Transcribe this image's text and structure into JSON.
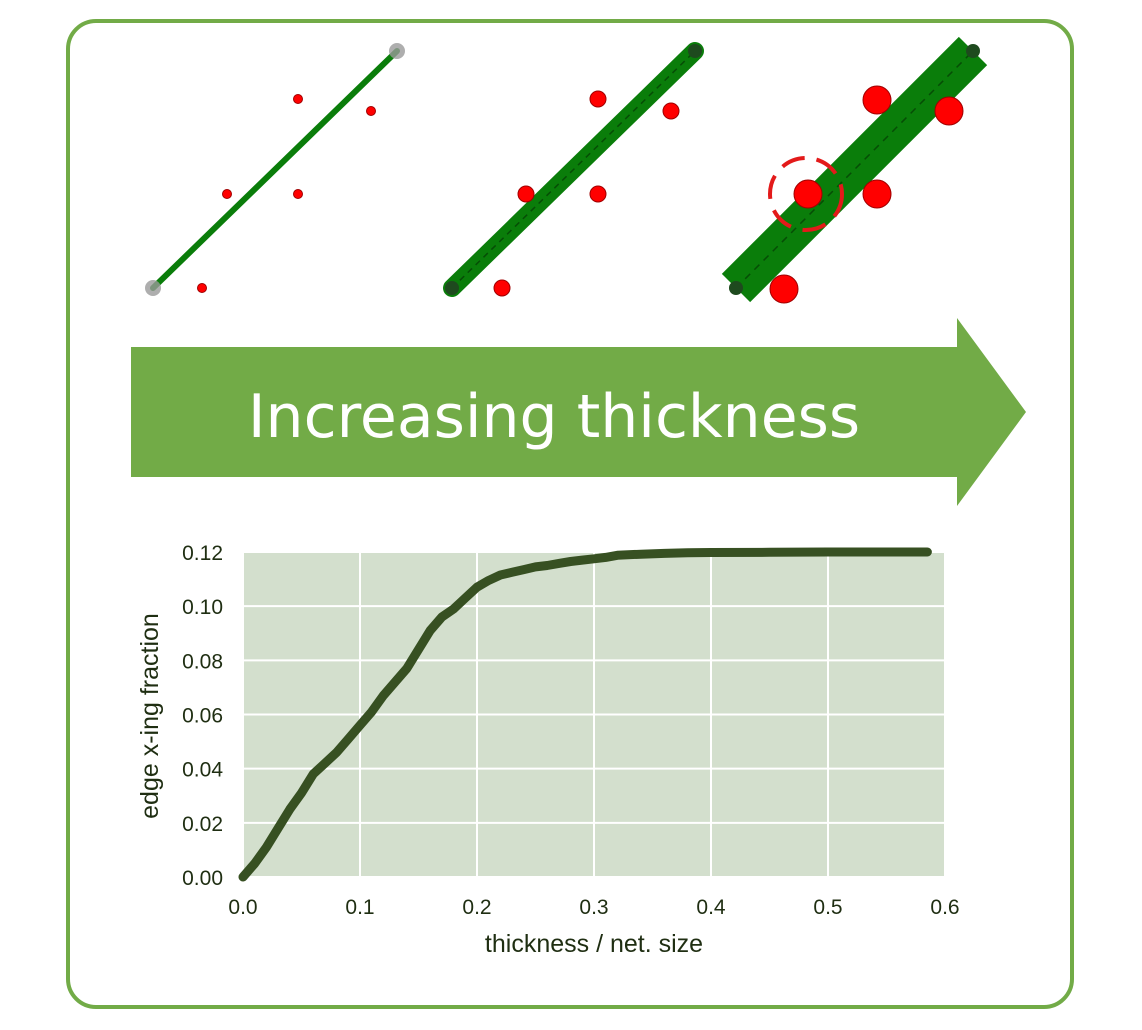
{
  "banner": {
    "text": "Increasing thickness",
    "color": "#72ab47",
    "text_color": "#ffffff"
  },
  "illustrations": {
    "edge_color": "#0a7d0a",
    "node_color": "#ff0000",
    "endpoint_color": "#1e4a1e",
    "highlight_color": "#e31a1a",
    "panels": [
      {
        "label": "thin"
      },
      {
        "label": "medium"
      },
      {
        "label": "thick"
      }
    ]
  },
  "chart_data": {
    "type": "line",
    "title": "",
    "xlabel": "thickness / net. size",
    "ylabel": "edge x-ing fraction",
    "xlim": [
      0.0,
      0.6
    ],
    "ylim": [
      0.0,
      0.12
    ],
    "xticks": [
      "0.0",
      "0.1",
      "0.2",
      "0.3",
      "0.4",
      "0.5",
      "0.6"
    ],
    "yticks": [
      "0.00",
      "0.02",
      "0.04",
      "0.06",
      "0.08",
      "0.10",
      "0.12"
    ],
    "grid": true,
    "background_color": "#d3dfcd",
    "line_color": "#375022",
    "series": [
      {
        "x": [
          0.0,
          0.01,
          0.02,
          0.03,
          0.04,
          0.05,
          0.06,
          0.07,
          0.08,
          0.09,
          0.1,
          0.11,
          0.12,
          0.13,
          0.14,
          0.15,
          0.16,
          0.17,
          0.18,
          0.19,
          0.2,
          0.21,
          0.22,
          0.23,
          0.24,
          0.25,
          0.26,
          0.27,
          0.28,
          0.29,
          0.3,
          0.31,
          0.32,
          0.34,
          0.36,
          0.38,
          0.4,
          0.45,
          0.5,
          0.55,
          0.585
        ],
        "y": [
          0.0,
          0.005,
          0.011,
          0.018,
          0.025,
          0.031,
          0.038,
          0.042,
          0.046,
          0.051,
          0.056,
          0.061,
          0.067,
          0.072,
          0.077,
          0.084,
          0.091,
          0.096,
          0.099,
          0.103,
          0.107,
          0.1095,
          0.1115,
          0.1125,
          0.1135,
          0.1145,
          0.115,
          0.1158,
          0.1165,
          0.117,
          0.1175,
          0.118,
          0.1188,
          0.1192,
          0.1195,
          0.1197,
          0.1198,
          0.1199,
          0.12,
          0.12,
          0.12
        ]
      }
    ]
  }
}
